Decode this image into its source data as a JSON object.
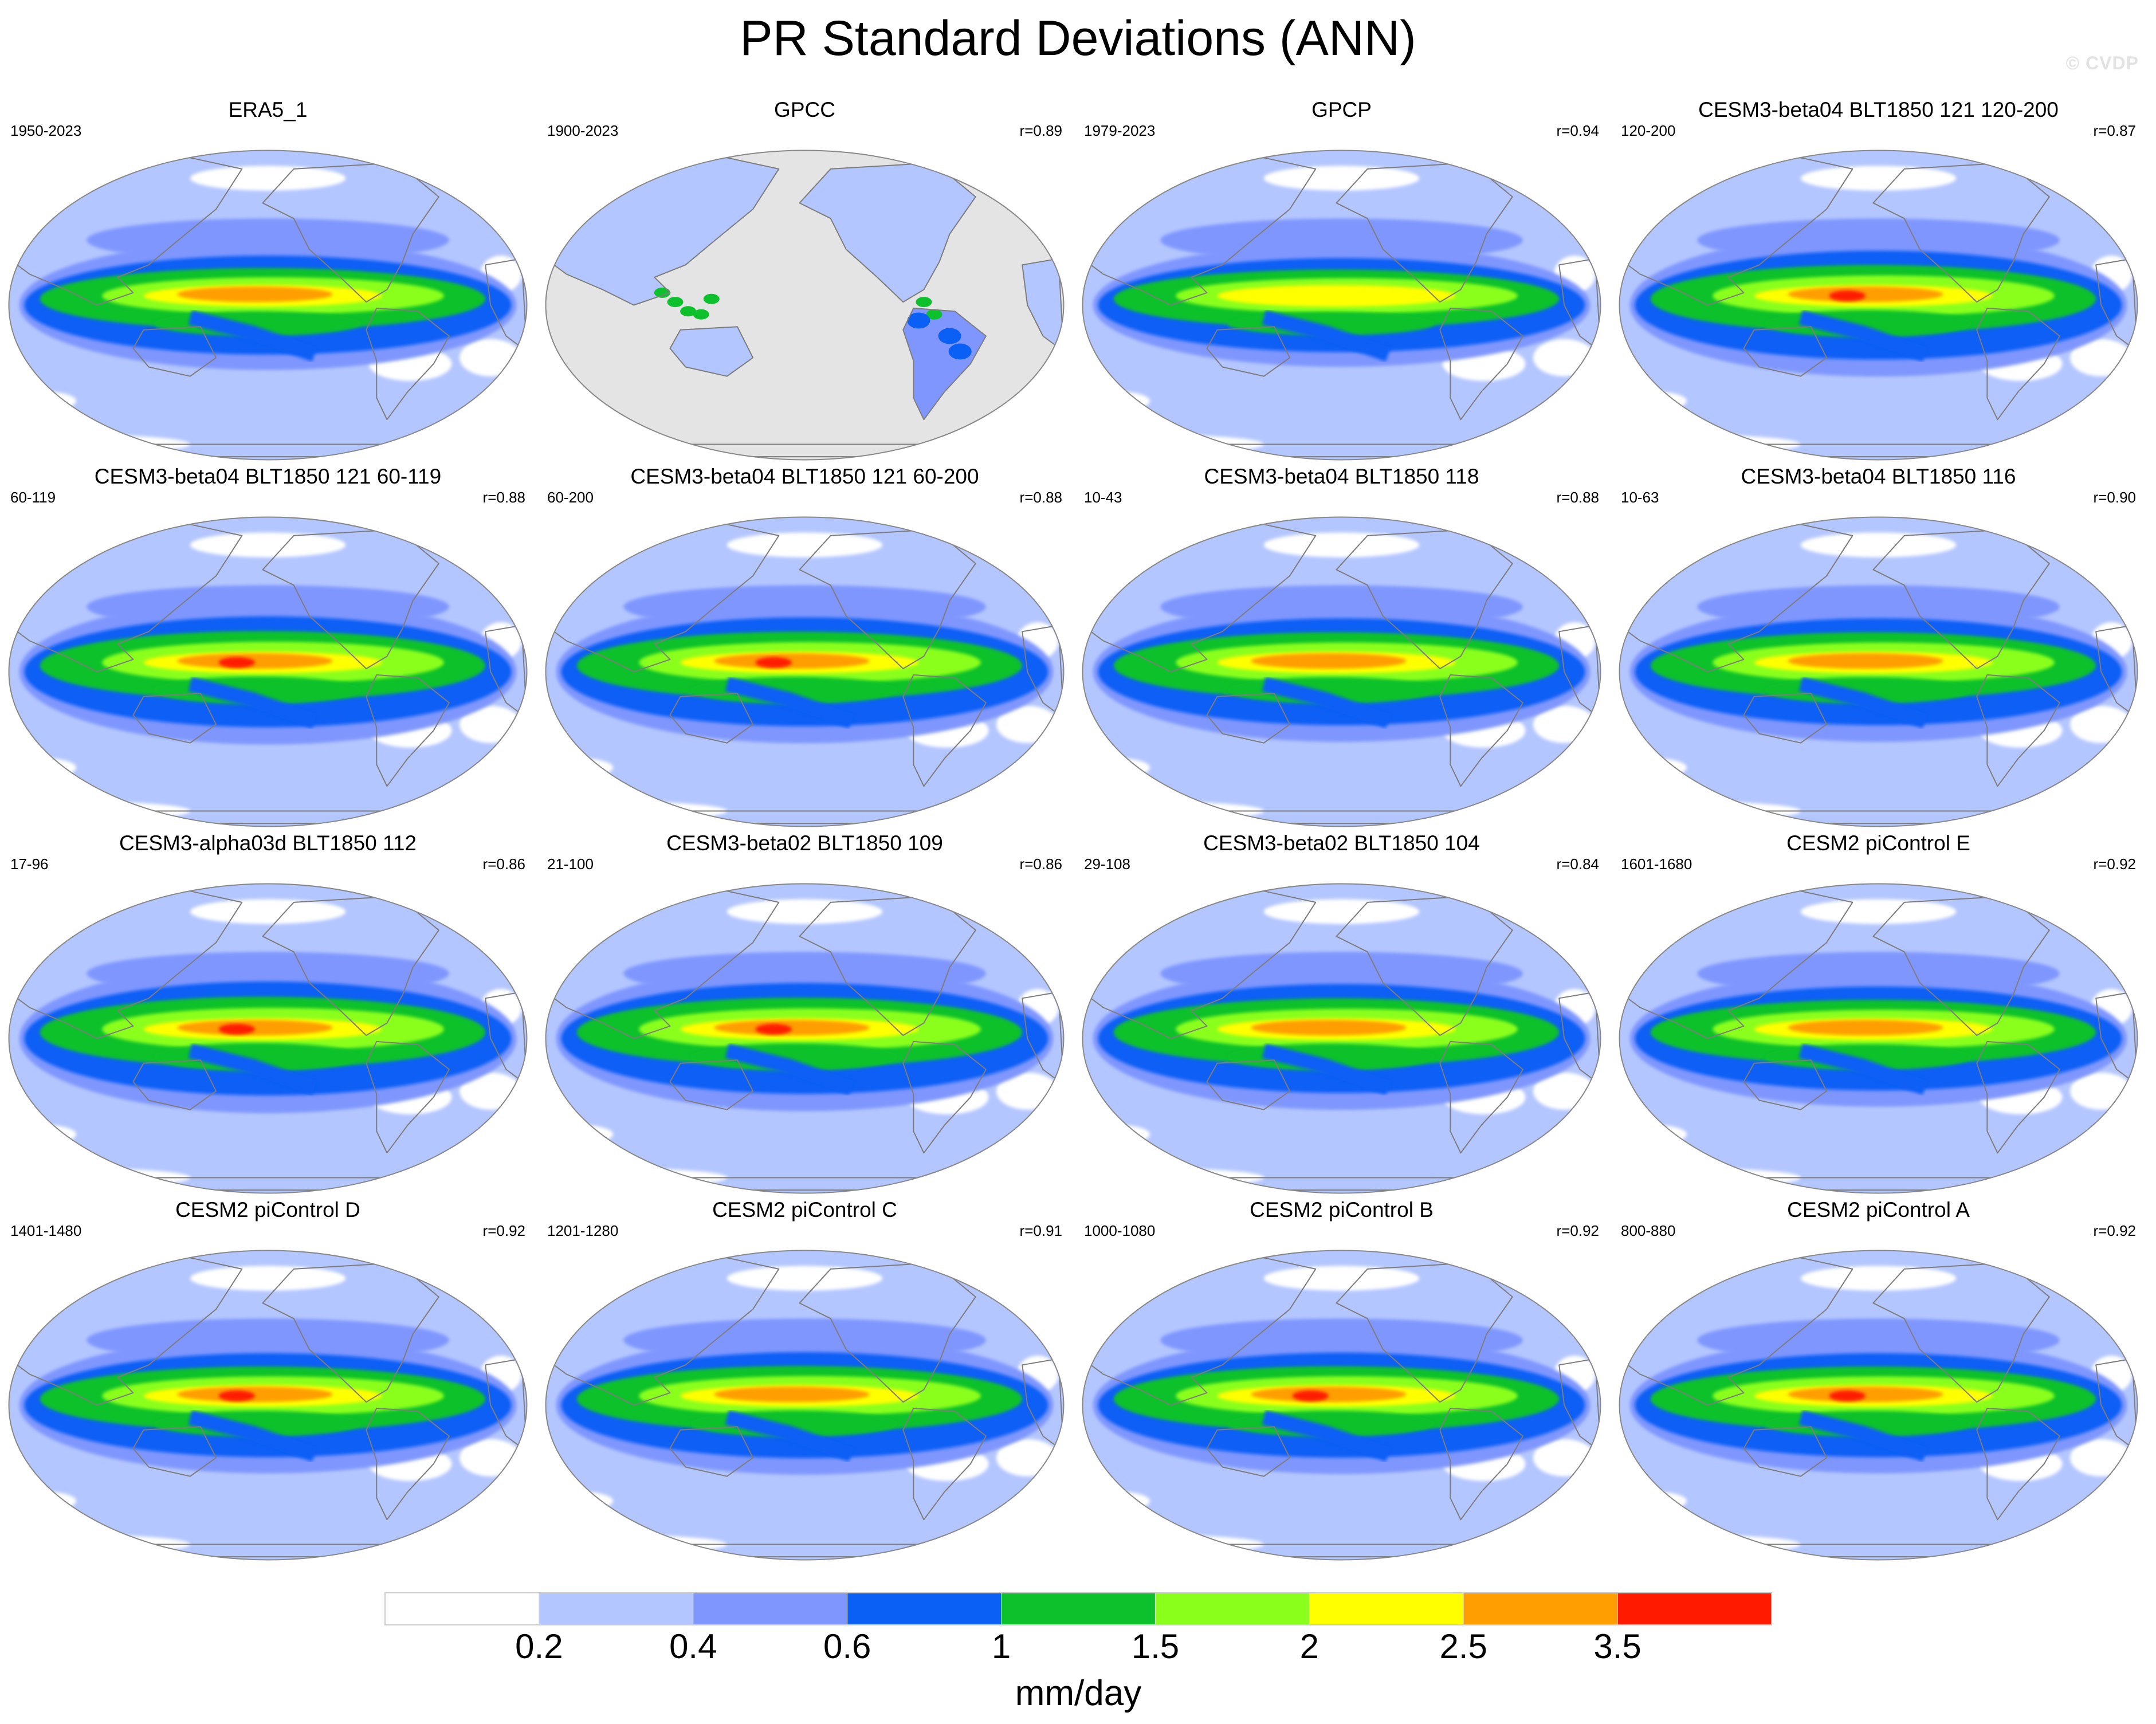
{
  "figure": {
    "title": "PR Standard Deviations (ANN)",
    "watermark": "© CVDP"
  },
  "colors": {
    "ocean_missing": "#e4e4e4",
    "coastline": "#7d7d7d",
    "border": "#888888"
  },
  "chart_data": {
    "type": "contour-map-panels",
    "title": "PR Standard Deviations (ANN)",
    "variable": "PR",
    "statistic": "Standard Deviation",
    "season": "ANN",
    "projection": "robinson",
    "panels": [
      {
        "title": "ERA5_1",
        "years": "1950-2023",
        "corr": "",
        "missing_ocean": false,
        "peak": 2.6,
        "scale": 1.0
      },
      {
        "title": "GPCC",
        "years": "1900-2023",
        "corr": "r=0.89",
        "missing_ocean": true,
        "peak": 1.2,
        "scale": 0.7
      },
      {
        "title": "GPCP",
        "years": "1979-2023",
        "corr": "r=0.94",
        "missing_ocean": false,
        "peak": 2.3,
        "scale": 0.95
      },
      {
        "title": "CESM3-beta04 BLT1850 121 120-200",
        "years": "120-200",
        "corr": "r=0.87",
        "missing_ocean": false,
        "peak": 3.6,
        "scale": 1.1
      },
      {
        "title": "CESM3-beta04 BLT1850 121 60-119",
        "years": "60-119",
        "corr": "r=0.88",
        "missing_ocean": false,
        "peak": 3.8,
        "scale": 1.12
      },
      {
        "title": "CESM3-beta04 BLT1850 121 60-200",
        "years": "60-200",
        "corr": "r=0.88",
        "missing_ocean": false,
        "peak": 3.7,
        "scale": 1.1
      },
      {
        "title": "CESM3-beta04 BLT1850 118",
        "years": "10-43",
        "corr": "r=0.88",
        "missing_ocean": false,
        "peak": 3.0,
        "scale": 1.08
      },
      {
        "title": "CESM3-beta04 BLT1850 116",
        "years": "10-63",
        "corr": "r=0.90",
        "missing_ocean": false,
        "peak": 3.2,
        "scale": 1.08
      },
      {
        "title": "CESM3-alpha03d BLT1850 112",
        "years": "17-96",
        "corr": "r=0.86",
        "missing_ocean": false,
        "peak": 3.5,
        "scale": 1.15
      },
      {
        "title": "CESM3-beta02 BLT1850 109",
        "years": "21-100",
        "corr": "r=0.86",
        "missing_ocean": false,
        "peak": 3.7,
        "scale": 1.12
      },
      {
        "title": "CESM3-beta02 BLT1850 104",
        "years": "29-108",
        "corr": "r=0.84",
        "missing_ocean": false,
        "peak": 3.1,
        "scale": 1.1
      },
      {
        "title": "CESM2 piControl E",
        "years": "1601-1680",
        "corr": "r=0.92",
        "missing_ocean": false,
        "peak": 3.2,
        "scale": 1.05
      },
      {
        "title": "CESM2 piControl D",
        "years": "1401-1480",
        "corr": "r=0.92",
        "missing_ocean": false,
        "peak": 3.8,
        "scale": 1.05
      },
      {
        "title": "CESM2 piControl C",
        "years": "1201-1280",
        "corr": "r=0.91",
        "missing_ocean": false,
        "peak": 3.2,
        "scale": 1.07
      },
      {
        "title": "CESM2 piControl B",
        "years": "1000-1080",
        "corr": "r=0.92",
        "missing_ocean": false,
        "peak": 3.7,
        "scale": 1.06
      },
      {
        "title": "CESM2 piControl A",
        "years": "800-880",
        "corr": "r=0.92",
        "missing_ocean": false,
        "peak": 3.6,
        "scale": 1.05
      }
    ],
    "colorbar": {
      "label": "mm/day",
      "levels": [
        "0.2",
        "0.4",
        "0.6",
        "1",
        "1.5",
        "2",
        "2.5",
        "3.5"
      ],
      "level_values": [
        0.2,
        0.4,
        0.6,
        1,
        1.5,
        2,
        2.5,
        3.5
      ],
      "colors": [
        "#ffffff",
        "#b4c6ff",
        "#7f96ff",
        "#0a5ff5",
        "#0cc12c",
        "#8aff1c",
        "#ffff00",
        "#ff9e00",
        "#ff1a00"
      ]
    }
  }
}
